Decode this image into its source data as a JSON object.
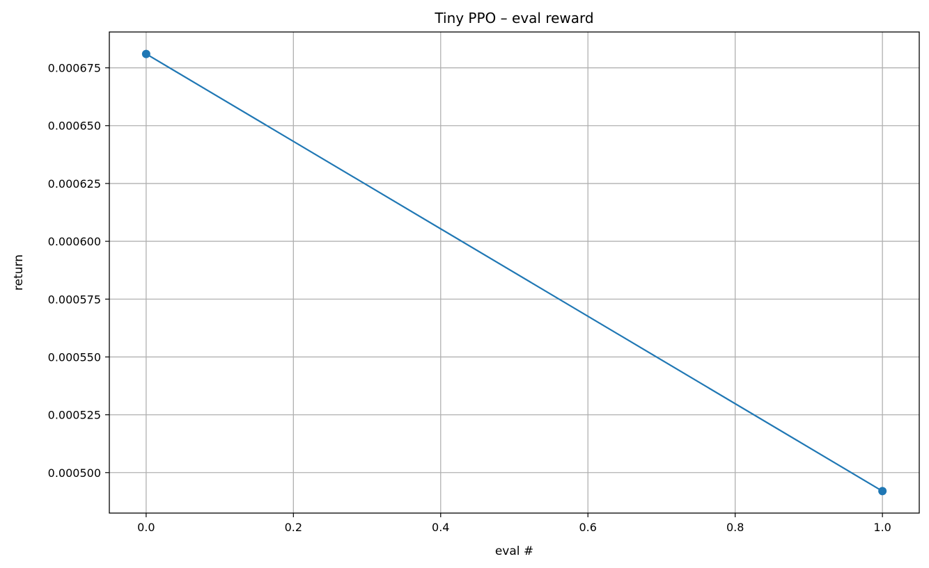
{
  "chart_data": {
    "type": "line",
    "title": "Tiny PPO – eval reward",
    "xlabel": "eval #",
    "ylabel": "return",
    "x": [
      0.0,
      1.0
    ],
    "series": [
      {
        "values": [
          0.000681,
          0.000492
        ],
        "color": "#1f77b4",
        "marker": "circle"
      }
    ],
    "xlim": [
      -0.05,
      1.05
    ],
    "ylim": [
      0.0004825,
      0.0006905
    ],
    "xticks": [
      0.0,
      0.2,
      0.4,
      0.6,
      0.8,
      1.0
    ],
    "xtick_labels": [
      "0.0",
      "0.2",
      "0.4",
      "0.6",
      "0.8",
      "1.0"
    ],
    "yticks": [
      0.0005,
      0.000525,
      0.00055,
      0.000575,
      0.0006,
      0.000625,
      0.00065,
      0.000675
    ],
    "ytick_labels": [
      "0.000500",
      "0.000525",
      "0.000550",
      "0.000575",
      "0.000600",
      "0.000625",
      "0.000650",
      "0.000675"
    ],
    "grid": true,
    "legend": "none"
  }
}
